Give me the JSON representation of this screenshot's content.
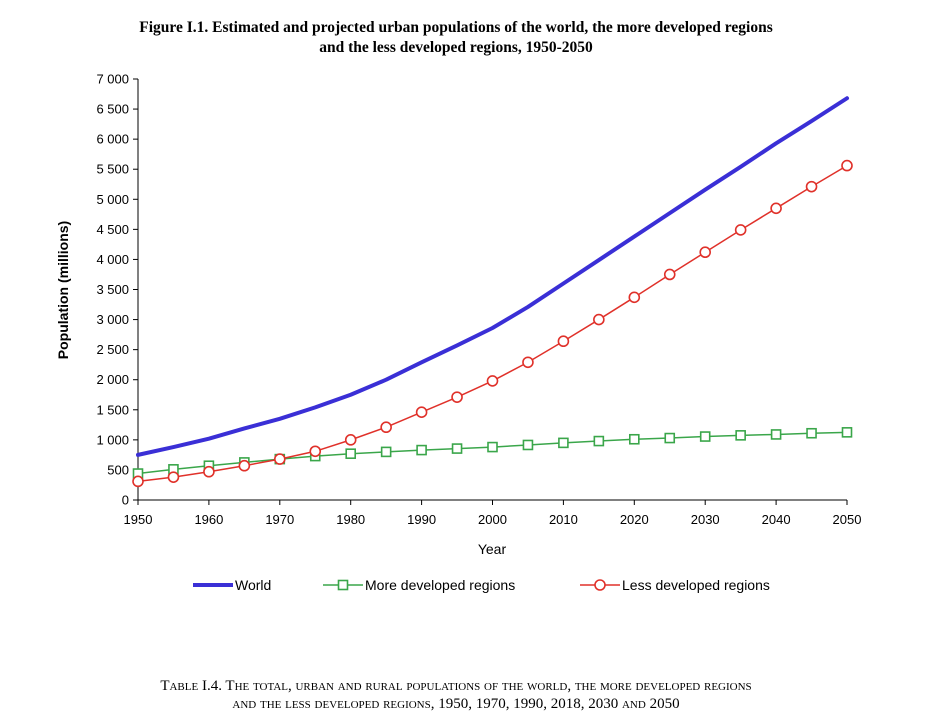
{
  "figure": {
    "title_line1": "Figure I.1. Estimated and projected urban populations of the world, the more developed regions",
    "title_line2": "and the less developed regions, 1950-2050"
  },
  "chart_data": {
    "type": "line",
    "title": "Figure I.1. Estimated and projected urban populations of the world, the more developed regions and the less developed regions, 1950-2050",
    "xlabel": "Year",
    "ylabel": "Population (millions)",
    "xlim": [
      1950,
      2050
    ],
    "ylim": [
      0,
      7000
    ],
    "x_ticks": [
      1950,
      1960,
      1970,
      1980,
      1990,
      2000,
      2010,
      2020,
      2030,
      2040,
      2050
    ],
    "x_tick_labels": [
      "1950",
      "1960",
      "1970",
      "1980",
      "1990",
      "2000",
      "2010",
      "2020",
      "2030",
      "2040",
      "2050"
    ],
    "y_ticks": [
      0,
      500,
      1000,
      1500,
      2000,
      2500,
      3000,
      3500,
      4000,
      4500,
      5000,
      5500,
      6000,
      6500,
      7000
    ],
    "y_tick_labels": [
      "0",
      "500",
      "1 000",
      "1 500",
      "2 000",
      "2 500",
      "3 000",
      "3 500",
      "4 000",
      "4 500",
      "5 000",
      "5 500",
      "6 000",
      "6 500",
      "7 000"
    ],
    "grid": false,
    "legend_position": "bottom",
    "x": [
      1950,
      1955,
      1960,
      1965,
      1970,
      1975,
      1980,
      1985,
      1990,
      1995,
      2000,
      2005,
      2010,
      2015,
      2020,
      2025,
      2030,
      2035,
      2040,
      2045,
      2050
    ],
    "series": [
      {
        "name": "World",
        "color": "#3a2fd6",
        "marker": "none",
        "values": [
          750,
          880,
          1020,
          1190,
          1350,
          1540,
          1750,
          2000,
          2290,
          2570,
          2860,
          3210,
          3600,
          3990,
          4380,
          4770,
          5160,
          5540,
          5930,
          6300,
          6680
        ]
      },
      {
        "name": "More developed regions",
        "color": "#3aa64a",
        "marker": "square",
        "values": [
          440,
          510,
          570,
          625,
          680,
          730,
          770,
          800,
          830,
          855,
          880,
          915,
          950,
          980,
          1010,
          1030,
          1055,
          1075,
          1090,
          1110,
          1125
        ]
      },
      {
        "name": "Less developed regions",
        "color": "#e0312a",
        "marker": "circle",
        "values": [
          310,
          380,
          470,
          570,
          680,
          810,
          1000,
          1210,
          1460,
          1710,
          1980,
          2290,
          2640,
          3000,
          3370,
          3750,
          4120,
          4490,
          4850,
          5210,
          5560
        ]
      }
    ]
  },
  "table_caption": {
    "line1": "Table I.4. The total, urban and rural populations of the world, the more developed regions",
    "line2": "and the less developed regions, 1950, 1970, 1990, 2018, 2030 and 2050"
  }
}
